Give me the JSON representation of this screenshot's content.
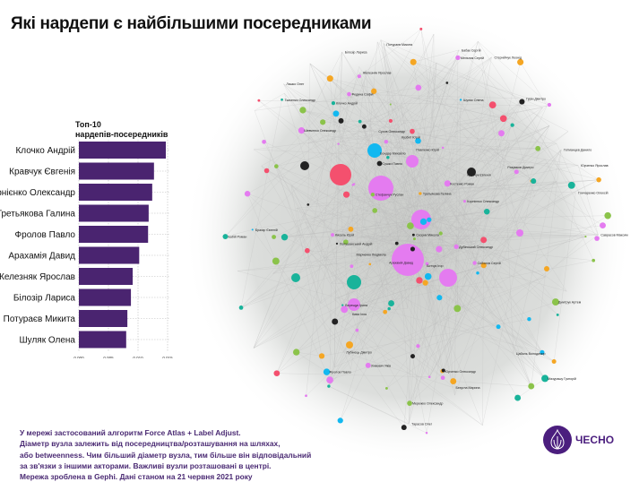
{
  "title": "Які нардепи є найбільшими посередниками",
  "chart_data": {
    "type": "bar",
    "orientation": "horizontal",
    "title": "Топ-10 нардепів-посередників",
    "categories": [
      "Клочко Андрій",
      "Кравчук Євгенія",
      "Корнієнко Олександр",
      "Третьякова Галина",
      "Фролов Павло",
      "Арахамія Давид",
      "Железняк Ярослав",
      "Білозір Лариса",
      "Потураєв Микита",
      "Шуляк Олена"
    ],
    "values": [
      0.0147,
      0.0127,
      0.0124,
      0.0118,
      0.0117,
      0.0102,
      0.0091,
      0.0088,
      0.0082,
      0.008
    ],
    "xticks": [
      "0.000",
      "0.005",
      "0.010",
      "0.015"
    ],
    "xlim": [
      0,
      0.015
    ],
    "grid": true,
    "bar_color": "#4a2470"
  },
  "network": {
    "labels": [
      "Саврасов Максим",
      "Федина Софія",
      "Гетманцев Данило",
      "Верещук Ірина",
      "Потураєв Микита",
      "Разумков Дмитро",
      "Лубінець Дмитро",
      "Брагар Євгеній",
      "Бабак Сергій",
      "Стефанчук Руслан",
      "Павленко Юрій",
      "Сушко Павло",
      "Ляшко Олег",
      "Юрченко Олександр",
      "Цабаль Володимир",
      "Мережко Олександр",
      "Кузбит Юрій",
      "Корнієнко Олександр",
      "Марченко Людмила",
      "Зінкевич Яків",
      "Стернійчук Леонід",
      "Дубінський Олександр",
      "Безугла Марина",
      "Соболєв Сергій",
      "Ботчук Ігор",
      "Скорик Микола",
      "Гончаренко Олексій",
      "Клочко Андрій",
      "Арахамія Давид",
      "Третьякова Галина",
      "Кравчук Євгенія",
      "Фролов Павло",
      "Білозір Лариса",
      "Шуляк Олена",
      "Железняк Ярослав",
      "Шевченко Олександр",
      "Мазурашу Григорій",
      "Костенко Роман",
      "Юрченко Ярослав",
      "Лопушанський Андрій",
      "Сухов Олександр",
      "Дмитрук Артем",
      "Кива Ілля",
      "Тарасов Олег",
      "Бабій Роман",
      "Ткаченко Олександр",
      "Бондар Михайло",
      "Мельник Сергій",
      "Гурін Дмитро",
      "Кисель Юрій"
    ]
  },
  "footer_lines": [
    "У мережі застосований алгоритм Force Atlas + Label Adjust.",
    "Діаметр вузла залежить від посередництва/розташування на шляхах,",
    "або betweenness. Чим більший діаметр вузла, тим більше він відповідальний",
    "за зв'язки з іншими акторами. Важливі вузли розташовані в центрі.",
    "Мережа зроблена в Gephi. Дані станом на 21 червня 2021 року"
  ],
  "logo": {
    "text": "ЧЕСНО"
  }
}
